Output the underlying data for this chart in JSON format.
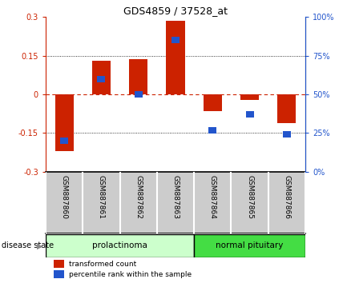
{
  "title": "GDS4859 / 37528_at",
  "samples": [
    "GSM887860",
    "GSM887861",
    "GSM887862",
    "GSM887863",
    "GSM887864",
    "GSM887865",
    "GSM887866"
  ],
  "red_values": [
    -0.22,
    0.13,
    0.135,
    0.285,
    -0.065,
    -0.02,
    -0.11
  ],
  "blue_values_pct": [
    20,
    60,
    50,
    85,
    27,
    37,
    24
  ],
  "ylim_left": [
    -0.3,
    0.3
  ],
  "ylim_right": [
    0,
    100
  ],
  "yticks_left": [
    -0.3,
    -0.15,
    0,
    0.15,
    0.3
  ],
  "yticks_right": [
    0,
    25,
    50,
    75,
    100
  ],
  "ytick_labels_left": [
    "-0.3",
    "-0.15",
    "0",
    "0.15",
    "0.3"
  ],
  "ytick_labels_right": [
    "0%",
    "25%",
    "50%",
    "75%",
    "100%"
  ],
  "group1_label": "prolactinoma",
  "group2_label": "normal pituitary",
  "group1_indices": [
    0,
    1,
    2,
    3
  ],
  "group2_indices": [
    4,
    5,
    6
  ],
  "disease_state_label": "disease state",
  "legend_red": "transformed count",
  "legend_blue": "percentile rank within the sample",
  "bar_color_red": "#cc2200",
  "bar_color_blue": "#2255cc",
  "group1_color_light": "#ccffcc",
  "group2_color_dark": "#44dd44",
  "sample_box_color": "#cccccc",
  "bar_width": 0.5,
  "blue_bar_width": 0.22
}
